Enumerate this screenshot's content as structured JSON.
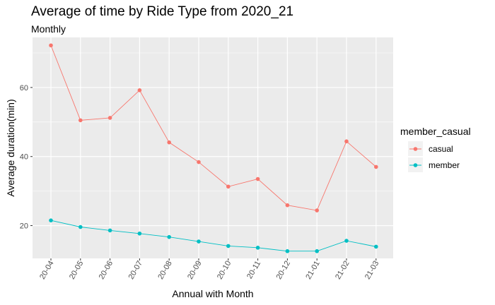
{
  "chart_data": {
    "type": "line",
    "title": "Average of time by Ride Type from 2020_21",
    "subtitle": "Monthly",
    "xlabel": "Annual with Month",
    "ylabel": "Average duration(min)",
    "categories": [
      "20-04",
      "20-05",
      "20-06",
      "20-07",
      "20-08",
      "20-09",
      "20-10",
      "20-11",
      "20-12",
      "21-01",
      "21-02",
      "21-03"
    ],
    "y_ticks": [
      20,
      40,
      60
    ],
    "ylim": [
      10.5,
      74.5
    ],
    "grid": true,
    "legend": {
      "title": "member_casual",
      "position": "right"
    },
    "series": [
      {
        "name": "casual",
        "color": "#F8766D",
        "values": [
          72.2,
          50.5,
          51.2,
          59.2,
          44.1,
          38.4,
          31.3,
          33.5,
          25.9,
          24.4,
          44.4,
          37.0
        ]
      },
      {
        "name": "member",
        "color": "#00BFC4",
        "values": [
          21.5,
          19.6,
          18.6,
          17.7,
          16.7,
          15.4,
          14.1,
          13.6,
          12.6,
          12.6,
          15.6,
          13.9
        ]
      }
    ]
  }
}
